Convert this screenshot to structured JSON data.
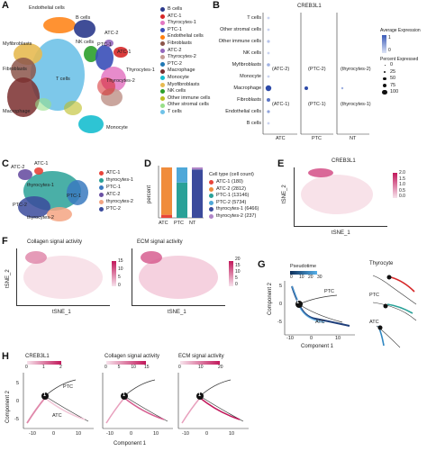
{
  "panels": {
    "A": {
      "letter": "A",
      "labels": [
        "Endothelial cells",
        "B cells",
        "ATC-2",
        "NK cells",
        "PTC-1",
        "Myfibroblasts",
        "Fibroblasts",
        "ATC-1",
        "Thyrocytes-1",
        "Thyrocytes-2",
        "T cells",
        "Macrophage",
        "Monocyte"
      ],
      "legend": [
        {
          "name": "B cells",
          "color": "#2b3a8c"
        },
        {
          "name": "ATC-1",
          "color": "#d62728"
        },
        {
          "name": "Thyrocytes-1",
          "color": "#e377c2"
        },
        {
          "name": "PTC-1",
          "color": "#3a4fb8"
        },
        {
          "name": "Endothelial cells",
          "color": "#ff7f0e"
        },
        {
          "name": "Fibroblasts",
          "color": "#8c564b"
        },
        {
          "name": "ATC-2",
          "color": "#9467bd"
        },
        {
          "name": "Thyrocytes-2",
          "color": "#c49c94"
        },
        {
          "name": "PTC-2",
          "color": "#1f77b4"
        },
        {
          "name": "Macrophage",
          "color": "#7a2e2e"
        },
        {
          "name": "Monocyte",
          "color": "#17becf"
        },
        {
          "name": "Myofibroblasts",
          "color": "#e7ba52"
        },
        {
          "name": "NK cells",
          "color": "#2ca02c"
        },
        {
          "name": "Other immune cells",
          "color": "#bcbd22"
        },
        {
          "name": "Other stromal cells",
          "color": "#98df8a"
        },
        {
          "name": "T cells",
          "color": "#6fc2e8"
        }
      ]
    },
    "B": {
      "letter": "B",
      "title": "CREB3L1",
      "rows": [
        "T cells",
        "Other stromal cells",
        "Other immune cells",
        "NK cells",
        "Myfibroblasts",
        "Monocyte",
        "Macrophage",
        "Fibroblasts",
        "Endothelial cells",
        "B cells"
      ],
      "columns": [
        "ATC",
        "PTC",
        "NT"
      ],
      "in_plot_labels": [
        "(ATC-2)",
        "(PTC-2)",
        "(thyrocytes-2)",
        "(ATC-1)",
        "(PTC-1)",
        "(thyrocytes-1)"
      ],
      "avg_expr_title": "Average Expression",
      "avg_expr_ticks": [
        "1",
        "0"
      ],
      "pct_title": "Percent Expressed",
      "pct_values": [
        "0",
        "25",
        "50",
        "75",
        "100"
      ]
    },
    "C": {
      "letter": "C",
      "labels": [
        "ATC-2",
        "ATC-1",
        "thyrocytes-1",
        "PTC-1",
        "PTC-2",
        "thyrocytes-2"
      ],
      "legend": [
        {
          "name": "ATC-1",
          "color": "#e8443a"
        },
        {
          "name": "thyrocytes-1",
          "color": "#2aa198"
        },
        {
          "name": "PTC-1",
          "color": "#3a7ac0"
        },
        {
          "name": "ATC-2",
          "color": "#6a51a3"
        },
        {
          "name": "thyrocytes-2",
          "color": "#f4a582"
        },
        {
          "name": "PTC-2",
          "color": "#3b4b9c"
        }
      ]
    },
    "D": {
      "letter": "D",
      "ylabel": "percent",
      "xcats": [
        "ATC",
        "PTC",
        "NT"
      ],
      "legend_title": "Cell type (cell count)",
      "legend": [
        {
          "name": "ATC-1 (180)",
          "color": "#e8443a"
        },
        {
          "name": "ATC-2 (2812)",
          "color": "#f08c3c"
        },
        {
          "name": "PTC-1 (13146)",
          "color": "#2aa198"
        },
        {
          "name": "PTC-2 (5734)",
          "color": "#4fa8d8"
        },
        {
          "name": "thyrocytes-1 (6466)",
          "color": "#3b4b9c"
        },
        {
          "name": "thyrocytes-2 (237)",
          "color": "#b085c8"
        }
      ]
    },
    "E": {
      "letter": "E",
      "title": "CREB3L1",
      "ylabel": "tSNE_2",
      "xlabel": "tSNE_1",
      "scale": [
        "2.0",
        "1.5",
        "1.0",
        "0.5",
        "0.0"
      ]
    },
    "F": {
      "letter": "F",
      "left_title": "Collagen signal activity",
      "right_title": "ECM signal activity",
      "ylabel": "tSNE_2",
      "xlabel": "tSNE_1",
      "left_scale": [
        "15",
        "10",
        "5",
        "0"
      ],
      "right_scale": [
        "20",
        "15",
        "10",
        "5",
        "0"
      ]
    },
    "G": {
      "letter": "G",
      "legend_title": "Pseudotime",
      "legend_ticks": [
        "0",
        "10",
        "20",
        "30"
      ],
      "ylabel": "Component 2",
      "xlabel": "Component 1",
      "xticks": [
        "-10",
        "0",
        "10"
      ],
      "yticks": [
        "5",
        "0",
        "-5"
      ],
      "branch_labels": [
        "PTC",
        "ATC"
      ],
      "node": "1",
      "right_title": "Thyrocyte",
      "right_labels": [
        "PTC",
        "ATC"
      ]
    },
    "H": {
      "letter": "H",
      "titles": [
        "CREB3L1",
        "Collagen signal activity",
        "ECM signal activity"
      ],
      "scales": [
        [
          "0",
          "1",
          "2"
        ],
        [
          "0",
          "5",
          "10",
          "15"
        ],
        [
          "0",
          "10",
          "20"
        ]
      ],
      "ylabel": "Component 2",
      "xlabel": "Component 1",
      "xticks": [
        "-10",
        "0",
        "10"
      ],
      "yticks": [
        "5",
        "0",
        "-5"
      ],
      "branch_labels": [
        "PTC",
        "ATC"
      ],
      "node": "1"
    }
  }
}
